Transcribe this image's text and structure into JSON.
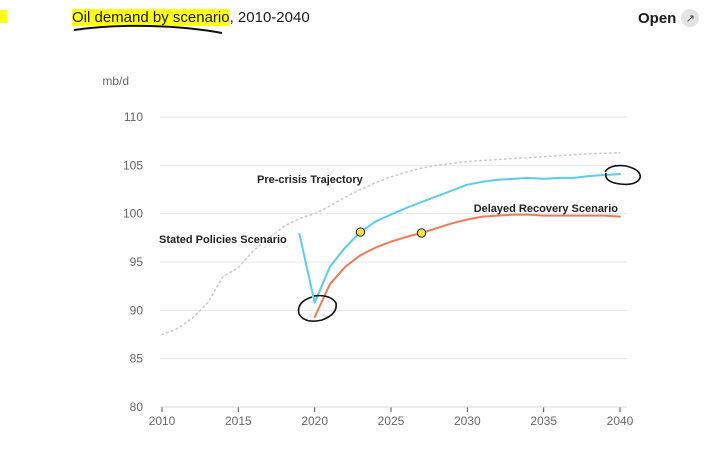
{
  "header": {
    "title_highlight": "Oil demand by scenario",
    "title_rest": ", 2010-2040",
    "open_label": "Open",
    "open_icon": "external-link-icon"
  },
  "chart_data": {
    "type": "line",
    "title": "Oil demand by scenario, 2010-2040",
    "ylabel": "mb/d",
    "xlim": [
      2010,
      2040
    ],
    "ylim": [
      80,
      110
    ],
    "xticks": [
      2010,
      2015,
      2020,
      2025,
      2030,
      2035,
      2040
    ],
    "yticks": [
      80,
      85,
      90,
      95,
      100,
      105,
      110
    ],
    "grid": true,
    "series": [
      {
        "name": "Pre-crisis Trajectory",
        "style": "dotted",
        "color": "#cccccc",
        "x": [
          2010,
          2011,
          2012,
          2013,
          2014,
          2015,
          2016,
          2017,
          2018,
          2019,
          2020,
          2021,
          2022,
          2023,
          2024,
          2025,
          2026,
          2027,
          2028,
          2029,
          2030,
          2032,
          2034,
          2036,
          2038,
          2040
        ],
        "y": [
          87.5,
          88.1,
          89.2,
          90.8,
          93.5,
          94.4,
          96.2,
          97.5,
          98.7,
          99.5,
          100.0,
          100.8,
          101.7,
          102.5,
          103.2,
          103.8,
          104.3,
          104.7,
          105.0,
          105.2,
          105.4,
          105.6,
          105.8,
          106.0,
          106.2,
          106.3
        ]
      },
      {
        "name": "Stated Policies Scenario",
        "style": "solid",
        "color": "#5bcbf0",
        "x": [
          2019,
          2020,
          2021,
          2022,
          2023,
          2024,
          2025,
          2026,
          2027,
          2028,
          2029,
          2030,
          2031,
          2032,
          2033,
          2034,
          2035,
          2036,
          2037,
          2038,
          2039,
          2040
        ],
        "y": [
          97.9,
          90.8,
          94.5,
          96.5,
          98.1,
          99.2,
          99.9,
          100.6,
          101.2,
          101.8,
          102.4,
          103.0,
          103.3,
          103.5,
          103.6,
          103.7,
          103.6,
          103.7,
          103.7,
          103.9,
          104.0,
          104.1
        ]
      },
      {
        "name": "Delayed Recovery Scenario",
        "style": "solid",
        "color": "#ef7b56",
        "x": [
          2020,
          2021,
          2022,
          2023,
          2024,
          2025,
          2026,
          2027,
          2028,
          2029,
          2030,
          2031,
          2032,
          2033,
          2034,
          2035,
          2036,
          2037,
          2038,
          2039,
          2040
        ],
        "y": [
          89.3,
          92.7,
          94.5,
          95.7,
          96.5,
          97.1,
          97.6,
          98.0,
          98.5,
          99.0,
          99.4,
          99.7,
          99.8,
          99.9,
          99.9,
          99.8,
          99.8,
          99.8,
          99.8,
          99.8,
          99.7
        ]
      }
    ],
    "markers": [
      {
        "x": 2023,
        "y": 98.1,
        "series": "Stated Policies Scenario"
      },
      {
        "x": 2027,
        "y": 98.0,
        "series": "Delayed Recovery Scenario"
      }
    ]
  }
}
